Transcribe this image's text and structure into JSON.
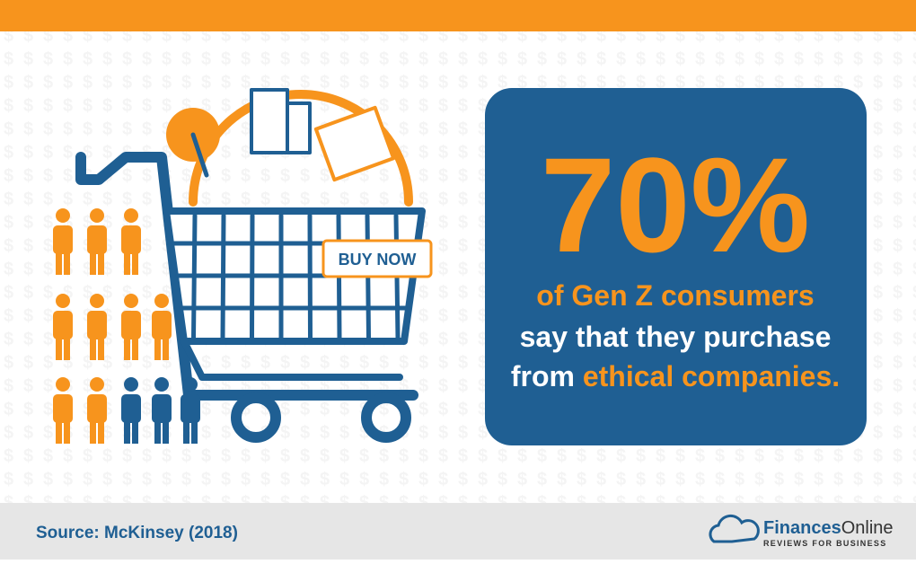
{
  "headline": {
    "stat": "70%",
    "line1": "of Gen Z consumers",
    "line2": "say that they purchase",
    "line3_prefix": "from",
    "line3_highlight": "ethical companies."
  },
  "illustration": {
    "button": "BUY NOW"
  },
  "footer": {
    "source": "Source: McKinsey (2018)",
    "brand_part1": "Finances",
    "brand_part2": "Online",
    "tagline": "REVIEWS FOR BUSINESS"
  }
}
